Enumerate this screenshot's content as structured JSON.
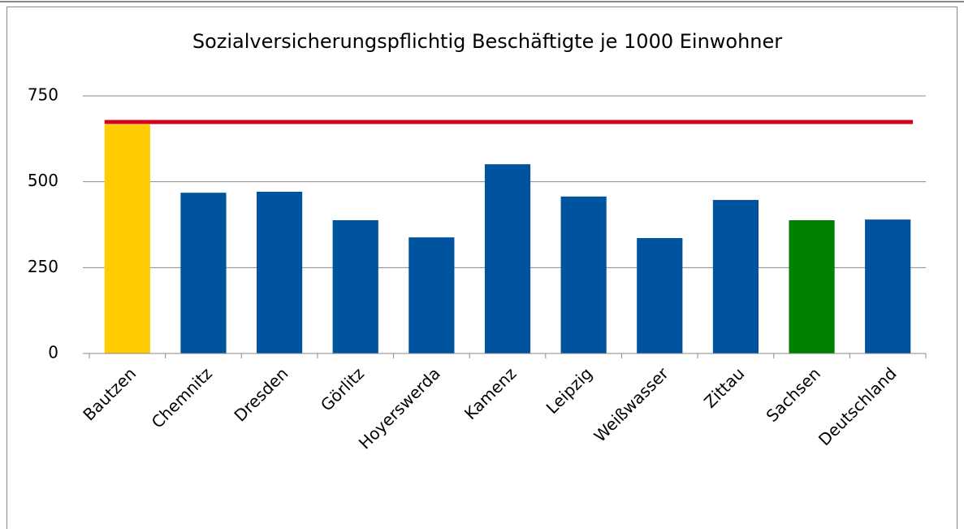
{
  "chart_data": {
    "type": "bar",
    "title": "Sozialversicherungspflichtig Beschäftigte je 1000 Einwohner",
    "categories": [
      "Bautzen",
      "Chemnitz",
      "Dresden",
      "Görlitz",
      "Hoyerswerda",
      "Kamenz",
      "Leipzig",
      "Weißwasser",
      "Zittau",
      "Sachsen",
      "Deutschland"
    ],
    "values": [
      667,
      468,
      471,
      388,
      338,
      551,
      457,
      336,
      447,
      388,
      390
    ],
    "colors": [
      "#ffcc00",
      "#00539f",
      "#00539f",
      "#00539f",
      "#00539f",
      "#00539f",
      "#00539f",
      "#00539f",
      "#00539f",
      "#008000",
      "#00539f"
    ],
    "reference_line": {
      "value": 674,
      "color": "#d0021b"
    },
    "ylim": [
      0,
      750
    ],
    "yticks": [
      0,
      250,
      500,
      750
    ],
    "grid": true
  }
}
